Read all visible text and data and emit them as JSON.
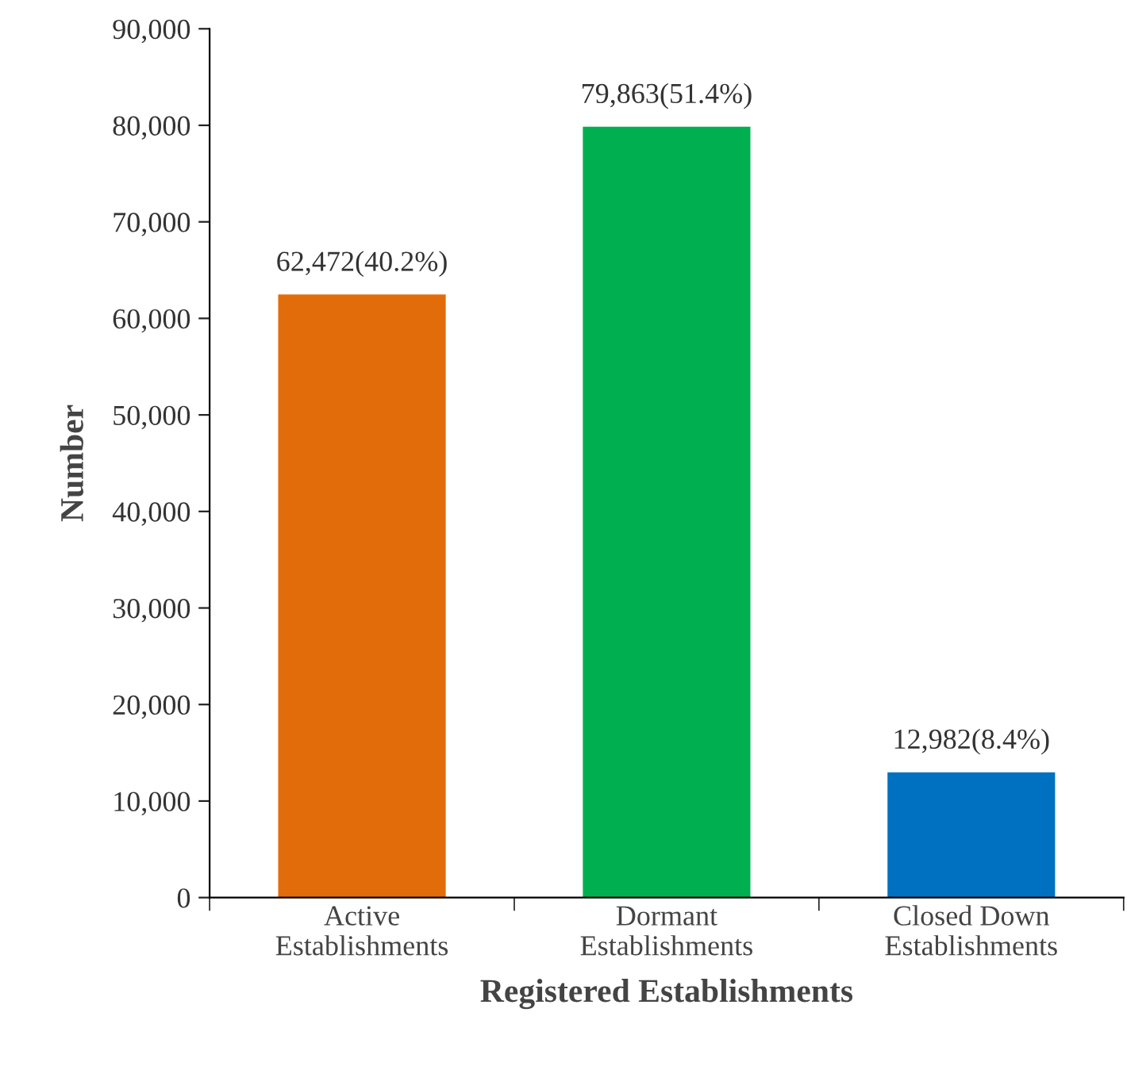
{
  "chart_data": {
    "type": "bar",
    "xlabel": "Registered Establishments",
    "ylabel": "Number",
    "categories": [
      "Active\nEstablishments",
      "Dormant\nEstablishments",
      "Closed Down\nEstablishments"
    ],
    "values": [
      62472,
      79863,
      12982
    ],
    "colors": [
      "#e36c0a",
      "#00b050",
      "#0070c0"
    ],
    "value_labels": [
      "62,472(40.2%)",
      "79,863(51.4%)",
      "12,982(8.4%)"
    ],
    "ylim": [
      0,
      90000
    ],
    "yticks": [
      {
        "value": 0,
        "label": "0"
      },
      {
        "value": 10000,
        "label": "10,000"
      },
      {
        "value": 20000,
        "label": "20,000"
      },
      {
        "value": 30000,
        "label": "30,000"
      },
      {
        "value": 40000,
        "label": "40,000"
      },
      {
        "value": 50000,
        "label": "50,000"
      },
      {
        "value": 60000,
        "label": "60,000"
      },
      {
        "value": 70000,
        "label": "70,000"
      },
      {
        "value": 80000,
        "label": "80,000"
      },
      {
        "value": 90000,
        "label": "90,000"
      }
    ],
    "grid": false
  }
}
